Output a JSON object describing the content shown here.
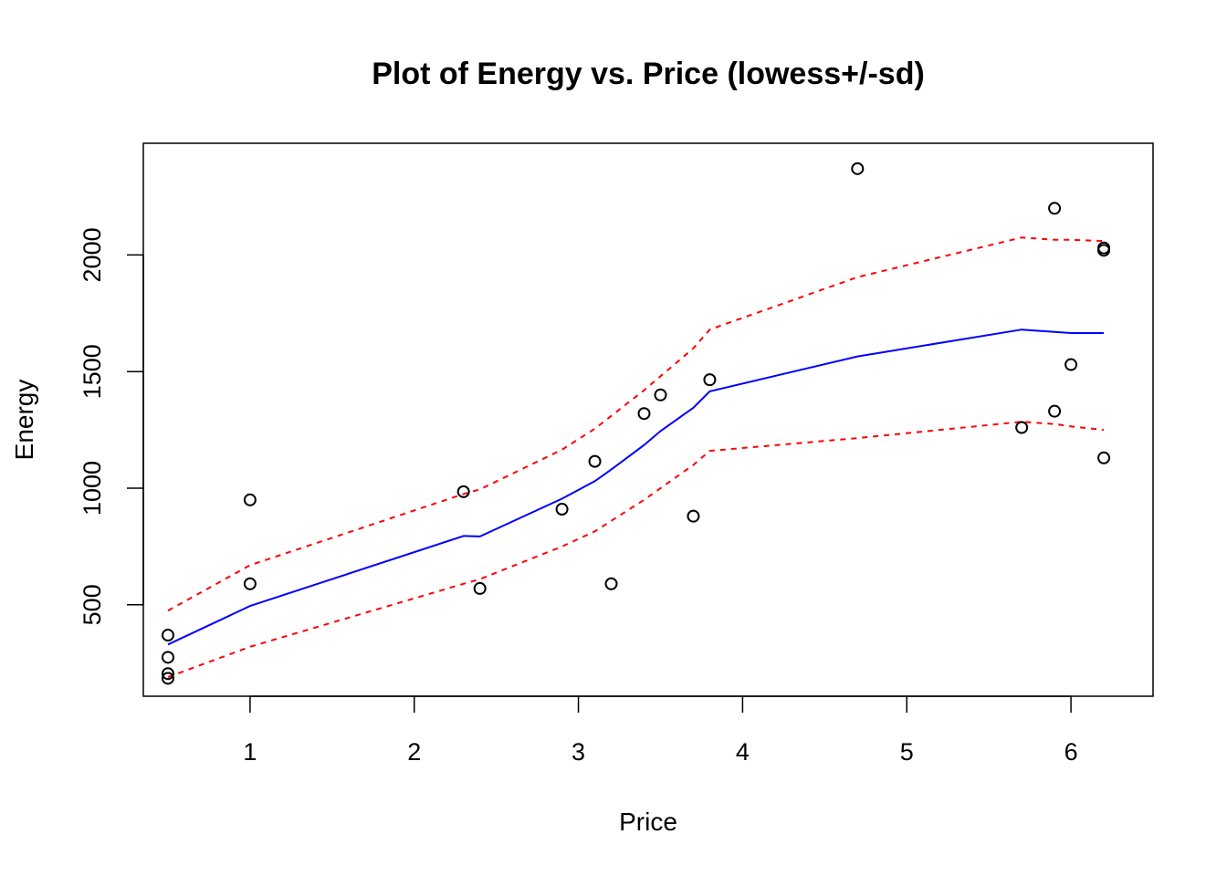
{
  "chart_data": {
    "type": "scatter",
    "title": "Plot of Energy vs. Price   (lowess+/-sd)",
    "xlabel": "Price",
    "ylabel": "Energy",
    "xlim": [
      0.35,
      6.5
    ],
    "ylim": [
      108,
      2479
    ],
    "x_ticks": [
      "1",
      "2",
      "3",
      "4",
      "5",
      "6"
    ],
    "y_ticks": [
      "500",
      "1000",
      "1500",
      "2000"
    ],
    "grid": false,
    "legend": "none",
    "colors": {
      "points": "#000000",
      "lowess": "#0000ff",
      "sd_band": "#ff0000"
    },
    "points": [
      {
        "x": 0.5,
        "y": 370
      },
      {
        "x": 0.5,
        "y": 275
      },
      {
        "x": 0.5,
        "y": 205
      },
      {
        "x": 0.5,
        "y": 185
      },
      {
        "x": 1.0,
        "y": 950
      },
      {
        "x": 1.0,
        "y": 590
      },
      {
        "x": 2.3,
        "y": 985
      },
      {
        "x": 2.4,
        "y": 570
      },
      {
        "x": 2.9,
        "y": 910
      },
      {
        "x": 3.1,
        "y": 1115
      },
      {
        "x": 3.2,
        "y": 590
      },
      {
        "x": 3.4,
        "y": 1320
      },
      {
        "x": 3.5,
        "y": 1400
      },
      {
        "x": 3.7,
        "y": 880
      },
      {
        "x": 3.8,
        "y": 1465
      },
      {
        "x": 4.7,
        "y": 2370
      },
      {
        "x": 5.7,
        "y": 1260
      },
      {
        "x": 5.9,
        "y": 2200
      },
      {
        "x": 5.9,
        "y": 1330
      },
      {
        "x": 6.0,
        "y": 1530
      },
      {
        "x": 6.2,
        "y": 2030
      },
      {
        "x": 6.2,
        "y": 2020
      },
      {
        "x": 6.2,
        "y": 1130
      }
    ],
    "series": [
      {
        "x": [
          0.5,
          1.0,
          2.3,
          2.4,
          2.9,
          3.1,
          3.2,
          3.4,
          3.5,
          3.7,
          3.8,
          4.7,
          5.7,
          5.9,
          6.0,
          6.2
        ],
        "values": [
          330,
          495,
          795,
          793,
          955,
          1030,
          1080,
          1185,
          1245,
          1345,
          1415,
          1565,
          1680,
          1670,
          1665,
          1665
        ]
      },
      {
        "x": [
          0.5,
          1.0,
          2.3,
          2.4,
          2.9,
          3.1,
          3.2,
          3.4,
          3.5,
          3.7,
          3.8,
          4.7,
          5.7,
          5.9,
          6.0,
          6.2
        ],
        "values": [
          475,
          670,
          975,
          995,
          1165,
          1255,
          1310,
          1420,
          1480,
          1600,
          1680,
          1905,
          2075,
          2065,
          2065,
          2060
        ]
      },
      {
        "x": [
          0.5,
          1.0,
          2.3,
          2.4,
          2.9,
          3.1,
          3.2,
          3.4,
          3.5,
          3.7,
          3.8,
          4.7,
          5.7,
          5.9,
          6.0,
          6.2
        ],
        "values": [
          190,
          320,
          590,
          610,
          750,
          815,
          860,
          950,
          1000,
          1100,
          1160,
          1215,
          1285,
          1275,
          1265,
          1250
        ]
      }
    ]
  }
}
